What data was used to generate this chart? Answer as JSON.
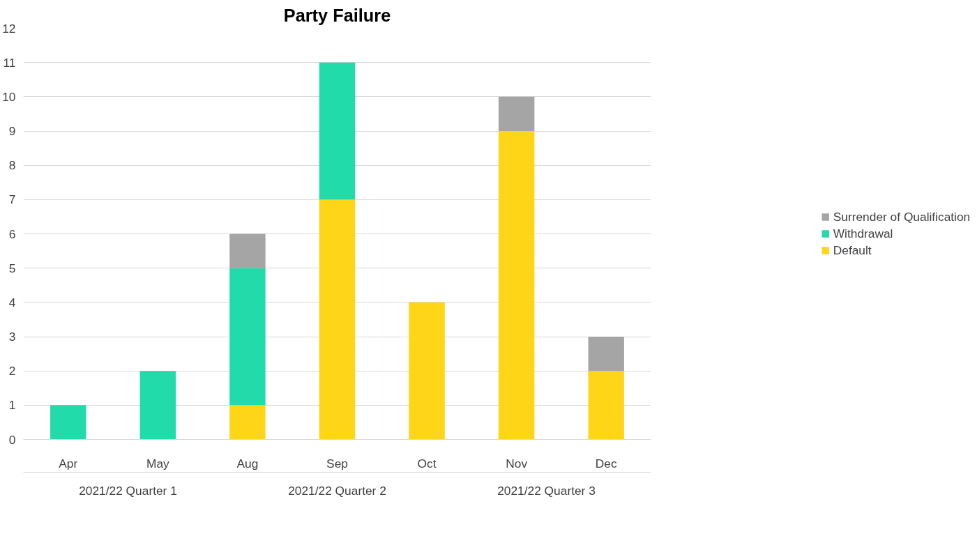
{
  "chart_data": {
    "type": "bar",
    "title": "Party Failure",
    "stacked": true,
    "categories": [
      "Apr",
      "May",
      "Aug",
      "Sep",
      "Oct",
      "Nov",
      "Dec"
    ],
    "series": [
      {
        "name": "Default",
        "color": "#ffd518",
        "values": [
          0,
          0,
          1,
          7,
          4,
          9,
          2
        ]
      },
      {
        "name": "Withdrawal",
        "color": "#22dbaa",
        "values": [
          1,
          2,
          4,
          4,
          0,
          0,
          0
        ]
      },
      {
        "name": "Surrender of Qualification",
        "color": "#a5a5a5",
        "values": [
          0,
          0,
          1,
          0,
          0,
          1,
          1
        ]
      }
    ],
    "annotations": [
      "2021/22 Quarter 1",
      "2021/22 Quarter 2",
      "2021/22 Quarter 3"
    ],
    "ylim": [
      0,
      12
    ],
    "yticks": [
      0,
      1,
      2,
      3,
      4,
      5,
      6,
      7,
      8,
      9,
      10,
      11,
      12
    ],
    "grid": "y",
    "legend": "right"
  }
}
